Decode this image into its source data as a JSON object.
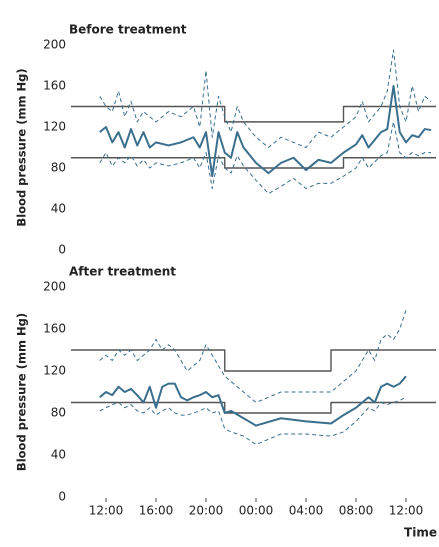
{
  "chart_data": [
    {
      "type": "line",
      "title": "Before treatment",
      "y_label": "Blood pressure (mm Hg)",
      "ylim": [
        0,
        200
      ],
      "yticks": [
        0,
        40,
        80,
        120,
        160,
        200
      ],
      "xlim": [
        9.2,
        38.4
      ],
      "grid": false,
      "x": [
        11.5,
        12,
        12.5,
        13,
        13.5,
        14,
        14.5,
        15,
        15.5,
        16,
        17,
        18,
        19,
        19.5,
        20,
        20.5,
        21,
        21.5,
        22,
        22.5,
        23,
        24,
        25,
        26,
        27,
        28,
        29,
        30,
        31,
        32,
        32.5,
        33,
        34,
        34.5,
        35,
        35.5,
        36,
        36.5,
        37,
        37.5,
        38
      ],
      "series": [
        {
          "color": "#3b6f8e",
          "line_style": "solid",
          "values": [
            115,
            120,
            105,
            115,
            100,
            118,
            102,
            115,
            100,
            105,
            102,
            105,
            110,
            100,
            115,
            72,
            115,
            95,
            90,
            115,
            100,
            85,
            75,
            85,
            90,
            78,
            88,
            85,
            95,
            103,
            112,
            100,
            115,
            118,
            160,
            115,
            105,
            112,
            110,
            118,
            117
          ]
        },
        {
          "color": "#3b6f8e",
          "line_style": "dashed",
          "values": [
            150,
            140,
            135,
            155,
            130,
            145,
            125,
            135,
            130,
            125,
            135,
            130,
            140,
            120,
            175,
            110,
            150,
            130,
            115,
            140,
            125,
            110,
            100,
            110,
            105,
            100,
            115,
            110,
            120,
            130,
            145,
            125,
            140,
            155,
            195,
            140,
            125,
            160,
            135,
            150,
            145
          ]
        },
        {
          "color": "#3b6f8e",
          "line_style": "dashed",
          "values": [
            85,
            95,
            82,
            90,
            85,
            92,
            82,
            88,
            80,
            85,
            82,
            85,
            90,
            80,
            95,
            60,
            92,
            80,
            75,
            92,
            82,
            68,
            55,
            62,
            70,
            60,
            65,
            65,
            72,
            80,
            90,
            80,
            92,
            95,
            125,
            95,
            90,
            95,
            92,
            95,
            95
          ]
        }
      ],
      "thresholds": [
        {
          "color": "#555555",
          "x": [
            9.2,
            21.5,
            21.5,
            31,
            31,
            38.4
          ],
          "values": [
            140,
            140,
            125,
            125,
            140,
            140
          ]
        },
        {
          "color": "#555555",
          "x": [
            9.2,
            21.5,
            21.5,
            31,
            31,
            38.4
          ],
          "values": [
            90,
            90,
            80,
            80,
            90,
            90
          ]
        }
      ]
    },
    {
      "type": "line",
      "title": "After treatment",
      "y_label": "Blood pressure (mm Hg)",
      "x_label": "Time",
      "ylim": [
        0,
        200
      ],
      "yticks": [
        0,
        40,
        80,
        120,
        160,
        200
      ],
      "xlim": [
        9.2,
        38.4
      ],
      "grid": false,
      "xticks": [
        {
          "value": 12,
          "label": "12:00"
        },
        {
          "value": 16,
          "label": "16:00"
        },
        {
          "value": 20,
          "label": "20:00"
        },
        {
          "value": 24,
          "label": "00:00"
        },
        {
          "value": 28,
          "label": "04:00"
        },
        {
          "value": 32,
          "label": "08:00"
        },
        {
          "value": 36,
          "label": "12:00"
        }
      ],
      "x": [
        11.5,
        12,
        12.5,
        13,
        13.5,
        14,
        14.5,
        15,
        15.5,
        16,
        16.5,
        17,
        17.5,
        18,
        18.5,
        19,
        19.5,
        20,
        20.5,
        21,
        21.5,
        22,
        23,
        24,
        26,
        28,
        30,
        31,
        32,
        33,
        33.5,
        34,
        34.5,
        35,
        35.5,
        36
      ],
      "series": [
        {
          "color": "#3b6f8e",
          "line_style": "solid",
          "values": [
            95,
            100,
            97,
            105,
            100,
            103,
            97,
            90,
            105,
            85,
            105,
            108,
            108,
            95,
            92,
            95,
            97,
            100,
            95,
            97,
            80,
            82,
            75,
            68,
            75,
            72,
            70,
            78,
            85,
            95,
            90,
            105,
            108,
            105,
            108,
            115
          ]
        },
        {
          "color": "#3b6f8e",
          "line_style": "dashed",
          "values": [
            130,
            135,
            130,
            140,
            135,
            140,
            130,
            135,
            140,
            150,
            140,
            145,
            140,
            130,
            120,
            125,
            130,
            145,
            135,
            125,
            115,
            110,
            100,
            90,
            100,
            100,
            100,
            110,
            120,
            140,
            130,
            150,
            155,
            150,
            160,
            178
          ]
        },
        {
          "color": "#3b6f8e",
          "line_style": "dashed",
          "values": [
            82,
            85,
            88,
            90,
            85,
            88,
            82,
            80,
            85,
            78,
            82,
            85,
            80,
            78,
            78,
            80,
            82,
            85,
            80,
            82,
            65,
            62,
            58,
            50,
            60,
            60,
            58,
            62,
            72,
            85,
            82,
            90,
            88,
            90,
            92,
            95
          ]
        }
      ],
      "thresholds": [
        {
          "color": "#555555",
          "x": [
            9.2,
            21.5,
            21.5,
            30,
            30,
            38.4
          ],
          "values": [
            140,
            140,
            120,
            120,
            140,
            140
          ]
        },
        {
          "color": "#555555",
          "x": [
            9.2,
            21.5,
            21.5,
            30,
            30,
            38.4
          ],
          "values": [
            90,
            90,
            80,
            80,
            90,
            90
          ]
        }
      ]
    }
  ]
}
